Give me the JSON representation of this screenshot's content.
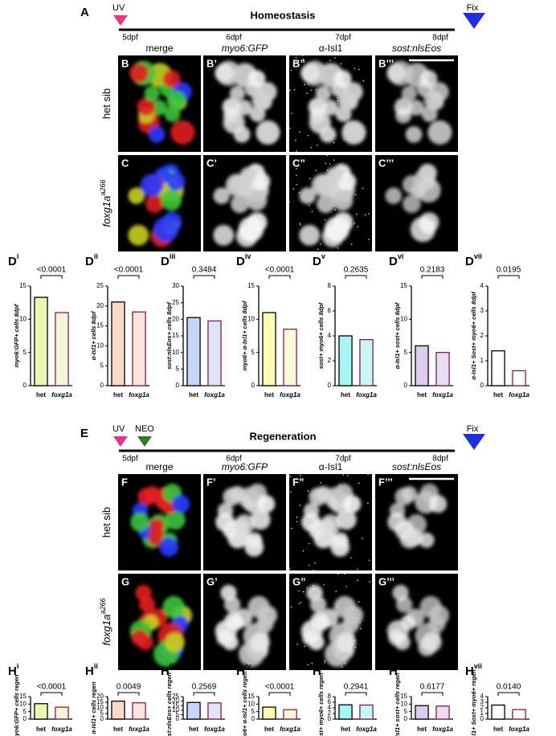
{
  "figure": {
    "timeline_a": {
      "label": "A",
      "start": "UV",
      "title": "Homeostasis",
      "end": "Fix",
      "days": [
        "5dpf",
        "6dpf",
        "7dpf",
        "8dpf"
      ]
    },
    "timeline_e": {
      "label": "E",
      "start": "UV",
      "neo": "NEO",
      "title": "Regeneration",
      "end": "Fix",
      "days": [
        "5dpf",
        "6dpf",
        "7dpf",
        "8dpf"
      ]
    },
    "channels_top": [
      "merge",
      "myo6:GFP",
      "α-Isl1",
      "sost:nlsEos"
    ],
    "channels_bottom": [
      "merge",
      "myo6:GFP",
      "α-Isl1",
      "sost:nlsEos"
    ],
    "rows": [
      {
        "label": "het sib",
        "panels": [
          "B",
          "B’",
          "B”",
          "B’’’"
        ]
      },
      {
        "label": "foxg1a",
        "sup": "a266",
        "panels": [
          "C",
          "C’",
          "C”",
          "C’’’"
        ]
      },
      {
        "label": "het sib",
        "panels": [
          "F",
          "F’",
          "F”",
          "F’’’"
        ]
      },
      {
        "label": "foxg1a",
        "sup": "a266",
        "panels": [
          "G",
          "G’",
          "G”",
          "G’’’"
        ]
      }
    ]
  },
  "chart_data": [
    {
      "type": "bar",
      "label": "D",
      "sup": "i",
      "y_label": "myo6:GFP+ cells 8dpf",
      "annotation": "<0.0001",
      "categories": [
        "het",
        "foxg1a"
      ],
      "values": [
        13.3,
        11
      ],
      "colors": [
        "#e8f7b2",
        "#f3f7d8"
      ],
      "edge_colors": [
        "#000000",
        "#8b1a4a"
      ],
      "ylim": [
        0,
        15
      ],
      "yticks": [
        0,
        5,
        10,
        15
      ]
    },
    {
      "type": "bar",
      "label": "D",
      "sup": "ii",
      "y_label": "α-Isl1+ cells 8dpf",
      "annotation": "<0.0001",
      "categories": [
        "het",
        "foxg1a"
      ],
      "values": [
        21,
        18.5
      ],
      "colors": [
        "#fcd8c8",
        "#fce6dc"
      ],
      "edge_colors": [
        "#000000",
        "#8b1a4a"
      ],
      "ylim": [
        0,
        25
      ],
      "yticks": [
        0,
        5,
        10,
        15,
        20,
        25
      ]
    },
    {
      "type": "bar",
      "label": "D",
      "sup": "iii",
      "y_label": "sost:nlsEos+ cells 8dpf",
      "annotation": "0.3484",
      "categories": [
        "het",
        "foxg1a"
      ],
      "values": [
        20.5,
        19.5
      ],
      "colors": [
        "#c8d6f7",
        "#dde5f8"
      ],
      "edge_colors": [
        "#000000",
        "#8b1a4a"
      ],
      "ylim": [
        0,
        30
      ],
      "yticks": [
        0,
        5,
        10,
        15,
        20,
        25,
        30
      ]
    },
    {
      "type": "bar",
      "label": "D",
      "sup": "iv",
      "y_label": "myo6+ α-Isl1+ cells 8dpf",
      "annotation": "<0.0001",
      "categories": [
        "het",
        "foxg1a"
      ],
      "values": [
        11,
        8.5
      ],
      "colors": [
        "#fdfbb2",
        "#fdfcd6"
      ],
      "edge_colors": [
        "#000000",
        "#8b1a4a"
      ],
      "ylim": [
        0,
        15
      ],
      "yticks": [
        0,
        5,
        10,
        15
      ]
    },
    {
      "type": "bar",
      "label": "D",
      "sup": "v",
      "y_label": "sost+ myo6+ cells 8dpf",
      "annotation": "0.2635",
      "categories": [
        "het",
        "foxg1a"
      ],
      "values": [
        4,
        3.7
      ],
      "colors": [
        "#a8f5f5",
        "#c8f7f7"
      ],
      "edge_colors": [
        "#000000",
        "#8b1a4a"
      ],
      "ylim": [
        0,
        8
      ],
      "yticks": [
        0,
        2,
        4,
        6,
        8
      ]
    },
    {
      "type": "bar",
      "label": "D",
      "sup": "vi",
      "y_label": "α-Isl1+ sost+ cells 8dpf",
      "annotation": "0.2183",
      "categories": [
        "het",
        "foxg1a"
      ],
      "values": [
        6,
        5
      ],
      "colors": [
        "#dacbef",
        "#e7ddf4"
      ],
      "edge_colors": [
        "#000000",
        "#8b1a4a"
      ],
      "ylim": [
        0,
        15
      ],
      "yticks": [
        0,
        5,
        10,
        15
      ]
    },
    {
      "type": "bar",
      "label": "D",
      "sup": "vii",
      "y_label": "α-Isl1+ Sost+ myo6+ cells 8dpf",
      "annotation": "0.0195",
      "categories": [
        "het",
        "foxg1a"
      ],
      "values": [
        1.4,
        0.6
      ],
      "colors": [
        "#ffffff",
        "#ffffff"
      ],
      "edge_colors": [
        "#000000",
        "#8b1a4a"
      ],
      "ylim": [
        0,
        4
      ],
      "yticks": [
        0,
        1,
        2,
        3,
        4
      ]
    },
    {
      "type": "bar",
      "label": "H",
      "sup": "i",
      "y_label": "myo6:GFP+ cells regen",
      "annotation": "<0.0001",
      "categories": [
        "het",
        "foxg1a"
      ],
      "values": [
        10.3,
        8
      ],
      "colors": [
        "#e8f7b2",
        "#f3f7d8"
      ],
      "edge_colors": [
        "#000000",
        "#8b1a4a"
      ],
      "ylim": [
        0,
        15
      ],
      "yticks": [
        0,
        5,
        10,
        15
      ]
    },
    {
      "type": "bar",
      "label": "H",
      "sup": "ii",
      "y_label": "α-Isl1+ cells regen",
      "annotation": "0.0049",
      "categories": [
        "het",
        "foxg1a"
      ],
      "values": [
        16,
        14.5
      ],
      "colors": [
        "#fcd8c8",
        "#fce6dc"
      ],
      "edge_colors": [
        "#000000",
        "#8b1a4a"
      ],
      "ylim": [
        0,
        20
      ],
      "yticks": [
        0,
        5,
        10,
        15,
        20
      ]
    },
    {
      "type": "bar",
      "label": "H",
      "sup": "iii",
      "y_label": "sost:nlsEos+ cells regen",
      "annotation": "0.2569",
      "categories": [
        "het",
        "foxg1a"
      ],
      "values": [
        18.5,
        18
      ],
      "colors": [
        "#c8d6f7",
        "#dde5f8"
      ],
      "edge_colors": [
        "#000000",
        "#8b1a4a"
      ],
      "ylim": [
        0,
        25
      ],
      "yticks": [
        0,
        5,
        10,
        15,
        20,
        25
      ]
    },
    {
      "type": "bar",
      "label": "H",
      "sup": "iv",
      "y_label": "myo6+ α-Isl1+ cells regen",
      "annotation": "<0.0001",
      "categories": [
        "het",
        "foxg1a"
      ],
      "values": [
        8,
        6.3
      ],
      "colors": [
        "#fdfbb2",
        "#fdfcd6"
      ],
      "edge_colors": [
        "#000000",
        "#8b1a4a"
      ],
      "ylim": [
        0,
        15
      ],
      "yticks": [
        0,
        5,
        10,
        15
      ]
    },
    {
      "type": "bar",
      "label": "H",
      "sup": "v",
      "y_label": "sost+ myo6+ cells regen",
      "annotation": "0.2941",
      "categories": [
        "het",
        "foxg1a"
      ],
      "values": [
        5.1,
        5
      ],
      "colors": [
        "#a8f5f5",
        "#c8f7f7"
      ],
      "edge_colors": [
        "#000000",
        "#8b1a4a"
      ],
      "ylim": [
        0,
        8
      ],
      "yticks": [
        0,
        2,
        4,
        6,
        8
      ]
    },
    {
      "type": "bar",
      "label": "H",
      "sup": "vi",
      "y_label": "α-Isl1+ sost+ cells regen",
      "annotation": "0.6177",
      "categories": [
        "het",
        "foxg1a"
      ],
      "values": [
        9,
        8.7
      ],
      "colors": [
        "#dacbef",
        "#e7ddf4"
      ],
      "edge_colors": [
        "#000000",
        "#8b1a4a"
      ],
      "ylim": [
        0,
        15
      ],
      "yticks": [
        0,
        5,
        10,
        15
      ]
    },
    {
      "type": "bar",
      "label": "H",
      "sup": "vii",
      "y_label": "α-Isl1+ Sost+ myo6+ regen",
      "annotation": "0.0140",
      "categories": [
        "het",
        "foxg1a"
      ],
      "values": [
        2.5,
        1.7
      ],
      "colors": [
        "#ffffff",
        "#ffffff"
      ],
      "edge_colors": [
        "#000000",
        "#8b1a4a"
      ],
      "ylim": [
        0,
        4
      ],
      "yticks": [
        0,
        1,
        2,
        3,
        4
      ]
    }
  ]
}
